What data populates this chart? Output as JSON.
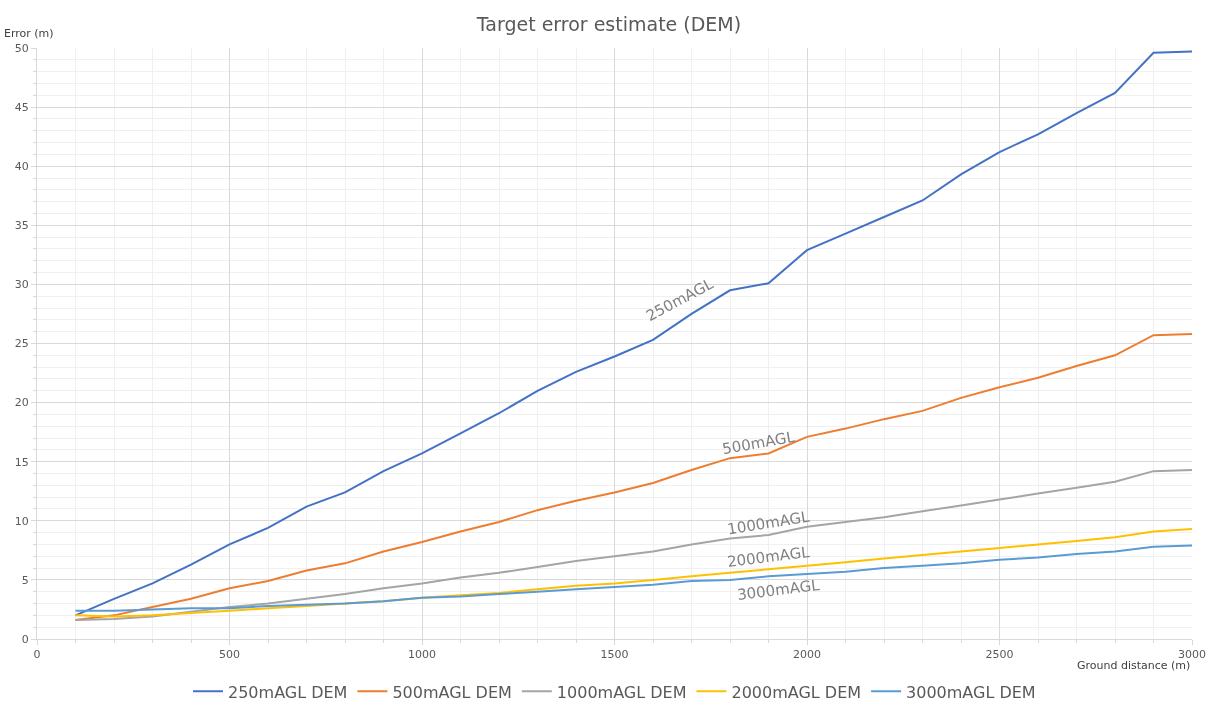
{
  "chart_data": {
    "type": "line",
    "title": "Target error estimate (DEM)",
    "xlabel": "Ground distance (m)",
    "ylabel": "Error (m)",
    "x": [
      100,
      200,
      300,
      400,
      500,
      600,
      700,
      800,
      900,
      1000,
      1100,
      1200,
      1300,
      1400,
      1500,
      1600,
      1700,
      1800,
      1900,
      2000,
      2100,
      2200,
      2300,
      2400,
      2500,
      2600,
      2700,
      2800,
      2900,
      3000
    ],
    "series": [
      {
        "name": "250mAGL DEM",
        "color": "#4472c4",
        "values": [
          2.0,
          3.4,
          4.7,
          6.3,
          8.0,
          9.4,
          11.2,
          12.4,
          14.2,
          15.7,
          17.4,
          19.1,
          21.0,
          22.6,
          23.9,
          25.3,
          27.5,
          29.5,
          30.1,
          32.9,
          34.3,
          35.7,
          37.1,
          39.3,
          41.2,
          42.7,
          44.5,
          46.2,
          49.6,
          49.7
        ]
      },
      {
        "name": "500mAGL DEM",
        "color": "#ed7d31",
        "values": [
          1.6,
          2.0,
          2.7,
          3.4,
          4.3,
          4.9,
          5.8,
          6.4,
          7.4,
          8.2,
          9.1,
          9.9,
          10.9,
          11.7,
          12.4,
          13.2,
          14.3,
          15.3,
          15.7,
          17.1,
          17.8,
          18.6,
          19.3,
          20.4,
          21.3,
          22.1,
          23.1,
          24.0,
          25.7,
          25.8
        ]
      },
      {
        "name": "1000mAGL DEM",
        "color": "#a5a5a5",
        "values": [
          1.6,
          1.7,
          1.9,
          2.3,
          2.7,
          3.0,
          3.4,
          3.8,
          4.3,
          4.7,
          5.2,
          5.6,
          6.1,
          6.6,
          7.0,
          7.4,
          8.0,
          8.5,
          8.8,
          9.5,
          9.9,
          10.3,
          10.8,
          11.3,
          11.8,
          12.3,
          12.8,
          13.3,
          14.2,
          14.3
        ]
      },
      {
        "name": "2000mAGL DEM",
        "color": "#ffc000",
        "values": [
          2.0,
          1.9,
          2.0,
          2.2,
          2.4,
          2.6,
          2.8,
          3.0,
          3.2,
          3.5,
          3.7,
          3.9,
          4.2,
          4.5,
          4.7,
          5.0,
          5.3,
          5.6,
          5.9,
          6.2,
          6.5,
          6.8,
          7.1,
          7.4,
          7.7,
          8.0,
          8.3,
          8.6,
          9.1,
          9.3
        ]
      },
      {
        "name": "3000mAGL DEM",
        "color": "#5b9bd5",
        "values": [
          2.4,
          2.4,
          2.5,
          2.6,
          2.6,
          2.8,
          2.9,
          3.0,
          3.2,
          3.5,
          3.6,
          3.8,
          4.0,
          4.2,
          4.4,
          4.6,
          4.9,
          5.0,
          5.3,
          5.5,
          5.7,
          6.0,
          6.2,
          6.4,
          6.7,
          6.9,
          7.2,
          7.4,
          7.8,
          7.9
        ]
      }
    ],
    "xlim": [
      0,
      3000
    ],
    "xticks": [
      0,
      500,
      1000,
      1500,
      2000,
      2500,
      3000
    ],
    "ylim": [
      0,
      50
    ],
    "yticks": [
      0,
      5,
      10,
      15,
      20,
      25,
      30,
      35,
      40,
      45,
      50
    ],
    "grid": true,
    "legend": "bottom",
    "marker": "none",
    "line_style": "solid",
    "annotations": [
      "250mAGL",
      "500mAGL",
      "1000mAGL",
      "2000mAGL",
      "3000mAGL"
    ]
  }
}
